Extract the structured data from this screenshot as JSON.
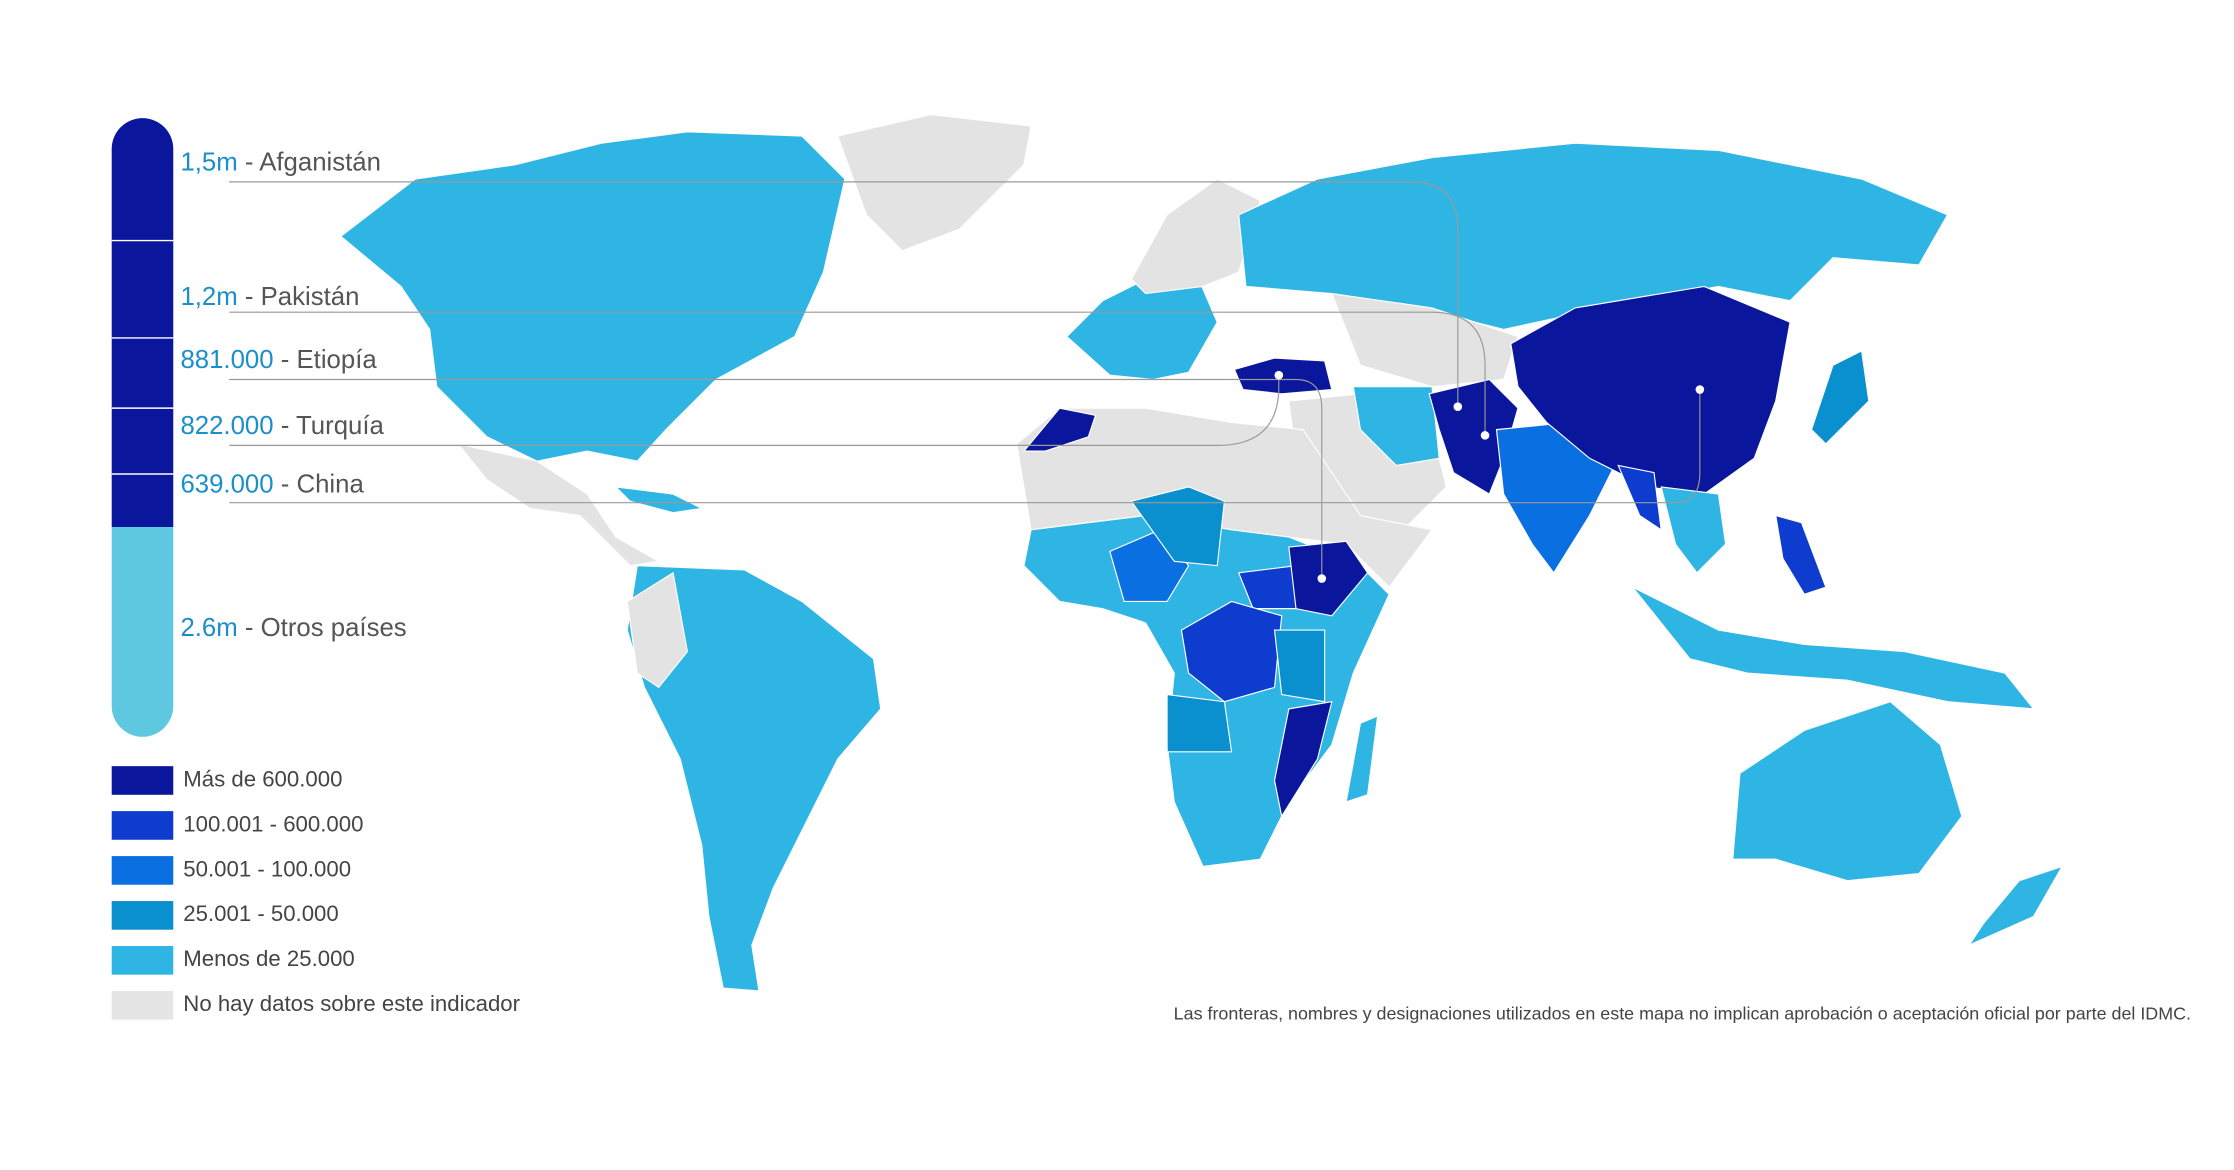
{
  "highlights": [
    {
      "value": "1,5m",
      "label": "- Afganistán"
    },
    {
      "value": "1,2m",
      "label": "- Pakistán"
    },
    {
      "value": "881.000",
      "label": "- Etiopía"
    },
    {
      "value": "822.000",
      "label": "- Turquía"
    },
    {
      "value": "639.000",
      "label": "- China"
    },
    {
      "value": "2.6m",
      "label": "- Otros países"
    }
  ],
  "legend": [
    "Más de 600.000",
    "100.001 - 600.000",
    "50.001 - 100.000",
    "25.001 - 50.000",
    "Menos de 25.000",
    "No hay datos sobre este indicador"
  ],
  "note": "Las fronteras, nombres y designaciones utilizados en este mapa no implican aprobación o aceptación oficial por parte del IDMC."
}
